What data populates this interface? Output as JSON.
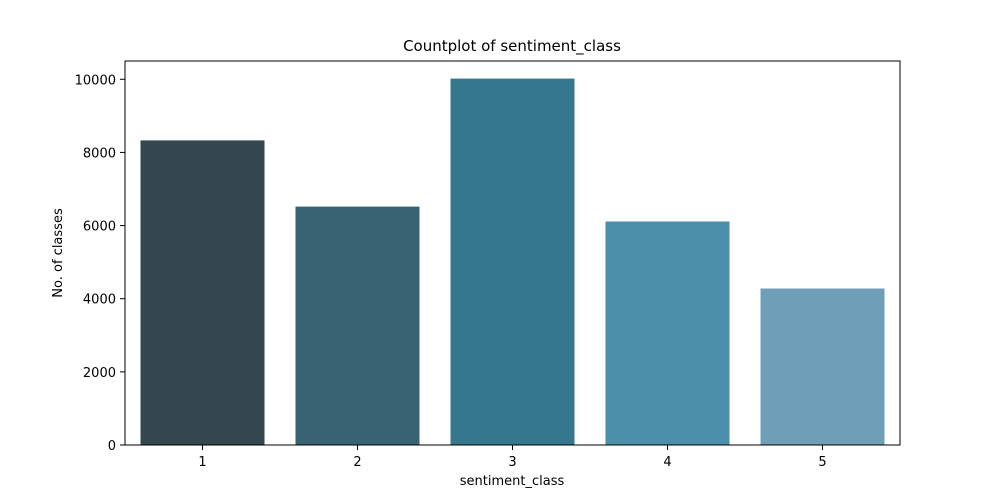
{
  "chart_data": {
    "type": "bar",
    "title": "Countplot of sentiment_class",
    "xlabel": "sentiment_class",
    "ylabel": "No. of classes",
    "categories": [
      "1",
      "2",
      "3",
      "4",
      "5"
    ],
    "values": [
      8330,
      6520,
      10020,
      6110,
      4280
    ],
    "colors": [
      "#34474f",
      "#376373",
      "#35788e",
      "#4a8ea9",
      "#6f9fb8"
    ],
    "ylim": [
      0,
      10500
    ],
    "yticks": [
      0,
      2000,
      4000,
      6000,
      8000,
      10000
    ],
    "grid": false,
    "legend": "none"
  }
}
